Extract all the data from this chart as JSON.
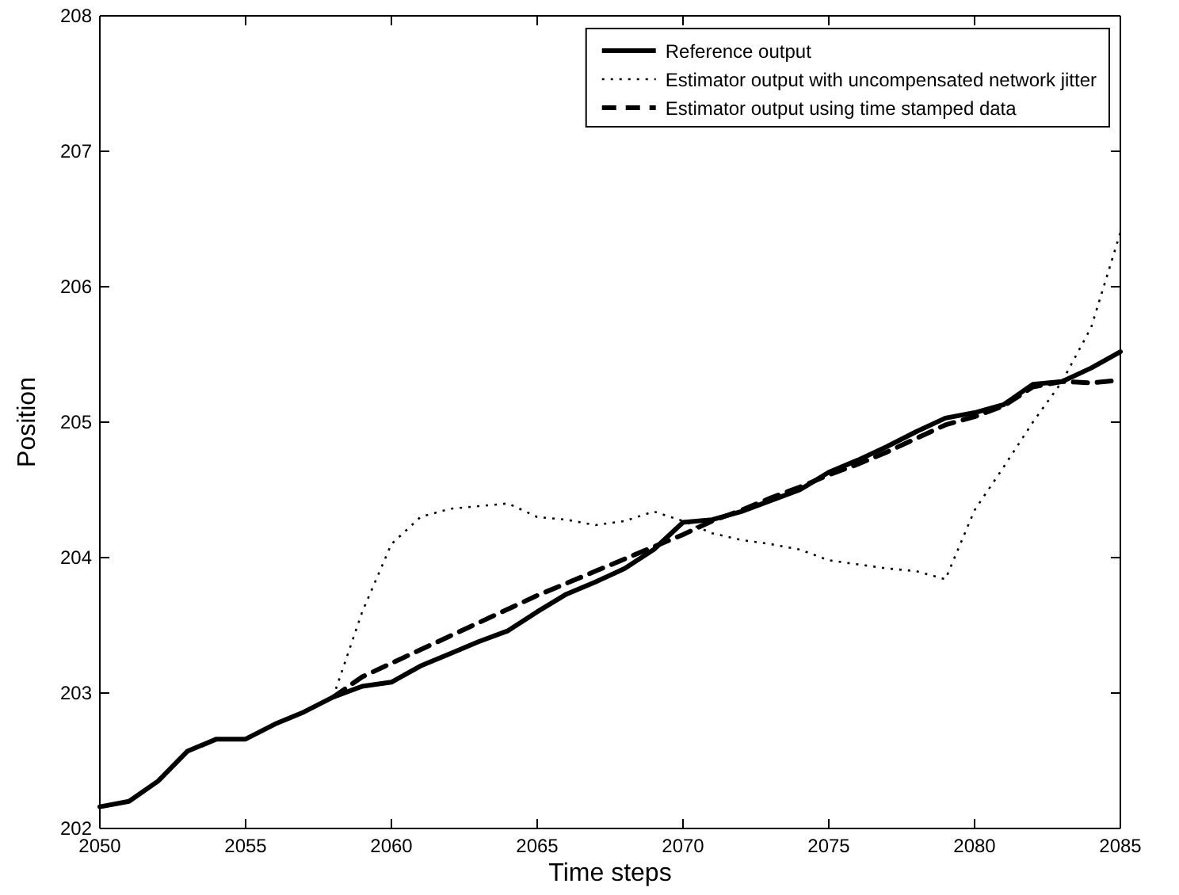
{
  "chart_data": {
    "type": "line",
    "xlabel": "Time steps",
    "ylabel": "Position",
    "x": [
      2050,
      2051,
      2052,
      2053,
      2054,
      2055,
      2056,
      2057,
      2058,
      2059,
      2060,
      2061,
      2062,
      2063,
      2064,
      2065,
      2066,
      2067,
      2068,
      2069,
      2070,
      2071,
      2072,
      2073,
      2074,
      2075,
      2076,
      2077,
      2078,
      2079,
      2080,
      2081,
      2082,
      2083,
      2084,
      2085
    ],
    "series": [
      {
        "name": "Reference output",
        "color": "#000000",
        "line_style": "solid",
        "values": [
          202.16,
          202.2,
          202.35,
          202.57,
          202.66,
          202.66,
          202.77,
          202.86,
          202.97,
          203.05,
          203.08,
          203.2,
          203.29,
          203.38,
          203.46,
          203.6,
          203.73,
          203.82,
          203.92,
          204.06,
          204.26,
          204.28,
          204.34,
          204.42,
          204.5,
          204.63,
          204.72,
          204.82,
          204.93,
          205.03,
          205.07,
          205.13,
          205.28,
          205.3,
          205.4,
          205.52
        ]
      },
      {
        "name": "Estimator output with uncompensated network jitter",
        "color": "#000000",
        "line_style": "dotted",
        "values": [
          null,
          null,
          null,
          null,
          null,
          null,
          null,
          null,
          202.97,
          203.6,
          204.1,
          204.3,
          204.36,
          204.38,
          204.4,
          204.3,
          204.28,
          204.24,
          204.27,
          204.34,
          204.27,
          204.18,
          204.13,
          204.1,
          204.06,
          203.98,
          203.95,
          203.92,
          203.9,
          203.84,
          204.35,
          204.67,
          205.0,
          205.3,
          205.7,
          206.4
        ]
      },
      {
        "name": "Estimator output using time stamped data",
        "color": "#000000",
        "line_style": "dashed",
        "values": [
          null,
          null,
          null,
          null,
          null,
          null,
          null,
          null,
          202.97,
          203.12,
          203.22,
          203.32,
          203.42,
          203.52,
          203.62,
          203.72,
          203.81,
          203.9,
          203.99,
          204.08,
          204.17,
          204.27,
          204.35,
          204.44,
          204.52,
          204.61,
          204.69,
          204.78,
          204.88,
          204.98,
          205.04,
          205.12,
          205.26,
          205.3,
          205.29,
          205.31
        ]
      }
    ],
    "xlim": [
      2050,
      2085
    ],
    "xticks": [
      2050,
      2055,
      2060,
      2065,
      2070,
      2075,
      2080,
      2085
    ],
    "ylim": [
      202,
      208
    ],
    "yticks": [
      202,
      203,
      204,
      205,
      206,
      207,
      208
    ],
    "grid": false,
    "legend": "top right"
  }
}
